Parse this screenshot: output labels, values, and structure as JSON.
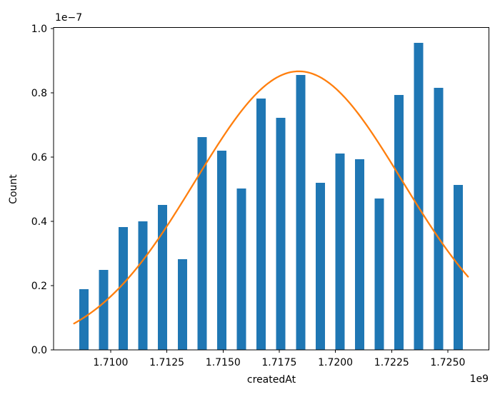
{
  "figure": {
    "background": "#ffffff",
    "xlabel": "createdAt",
    "ylabel": "Count",
    "x_offset_label": "1e9",
    "y_offset_label": "1e−7"
  },
  "chart_data": {
    "type": "bar",
    "subtype": "histogram_with_normal_fit_curve",
    "title": "",
    "xlabel": "createdAt",
    "ylabel": "Count",
    "x_scale_factor": "1e9",
    "y_scale_factor": "1e-7",
    "xlim": [
      1.70746,
      1.72683
    ],
    "ylim": [
      0,
      1.00335
    ],
    "x_ticks": [
      1.71,
      1.7125,
      1.715,
      1.7175,
      1.72,
      1.7225,
      1.725
    ],
    "x_tick_labels": [
      "1.7100",
      "1.7125",
      "1.7150",
      "1.7175",
      "1.7200",
      "1.7225",
      "1.7250"
    ],
    "y_ticks": [
      0,
      0.2,
      0.4,
      0.6,
      0.8,
      1.0
    ],
    "y_tick_labels": [
      "0.0",
      "0.2",
      "0.4",
      "0.6",
      "0.8",
      "1.0"
    ],
    "grid": false,
    "legend": false,
    "bar_color": "#1f77b4",
    "curve_color": "#ff7f0e",
    "axis_color": "#000000",
    "bar_width": 0.000413,
    "bin_centers": [
      1.708808,
      1.709685,
      1.710561,
      1.711437,
      1.712314,
      1.71319,
      1.714067,
      1.714943,
      1.715819,
      1.716696,
      1.717572,
      1.718448,
      1.719325,
      1.720201,
      1.721078,
      1.721954,
      1.72283,
      1.723707,
      1.724583,
      1.72546
    ],
    "values": [
      0.189,
      0.249,
      0.382,
      0.4,
      0.451,
      0.282,
      0.662,
      0.62,
      0.502,
      0.782,
      0.722,
      0.856,
      0.52,
      0.611,
      0.593,
      0.471,
      0.793,
      0.956,
      0.816,
      0.513
    ],
    "curve": {
      "type": "normal_pdf",
      "amplitude": 0.867,
      "mean": 1.71837,
      "sigma": 0.004605,
      "x_start": 1.70837,
      "x_end": 1.7259
    }
  }
}
